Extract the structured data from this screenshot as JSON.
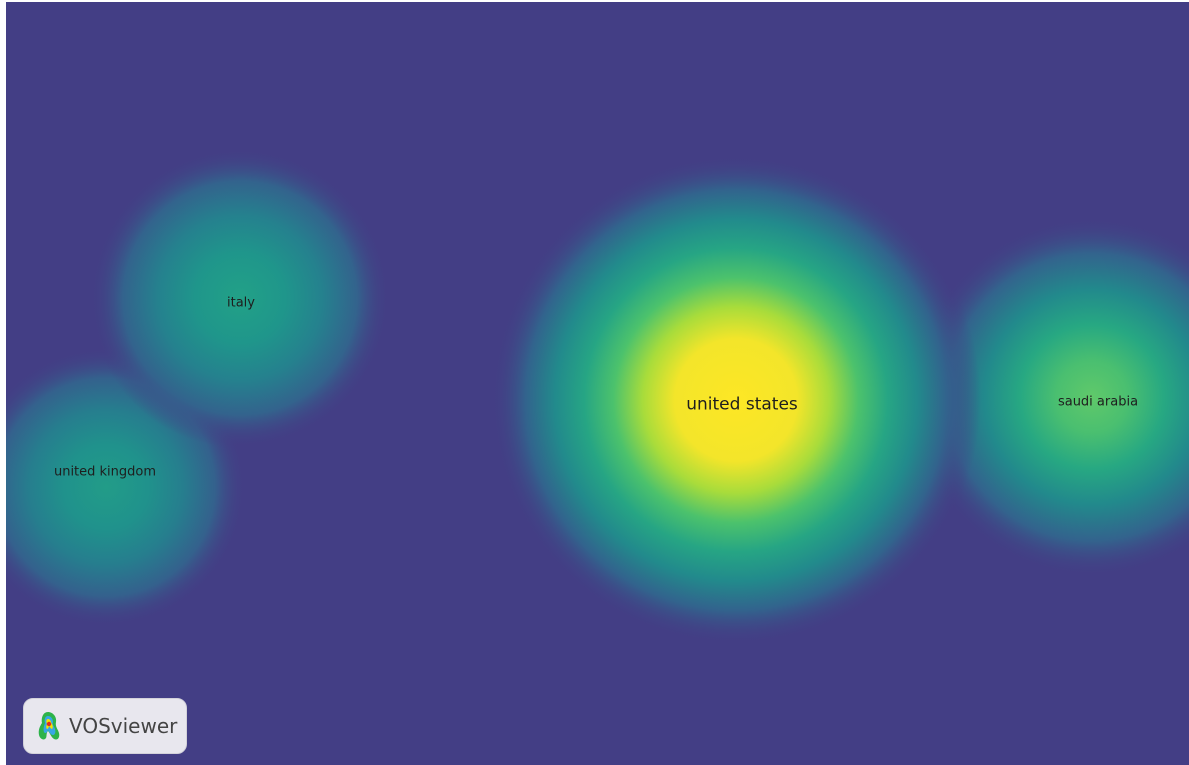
{
  "map": {
    "background_color": "#433e85",
    "nodes": [
      {
        "id": "italy",
        "label": "italy",
        "intensity": 0.55
      },
      {
        "id": "united-kingdom",
        "label": "united kingdom",
        "intensity": 0.5
      },
      {
        "id": "united-states",
        "label": "united states",
        "intensity": 1.0
      },
      {
        "id": "saudi-arabia",
        "label": "saudi arabia",
        "intensity": 0.7
      }
    ]
  },
  "branding": {
    "name": "VOSviewer",
    "icon": "vosviewer-logo-icon"
  },
  "colors": {
    "low": "#433e85",
    "mid_teal": "#21918c",
    "mid_green": "#35b779",
    "high_yellow": "#fde725"
  }
}
